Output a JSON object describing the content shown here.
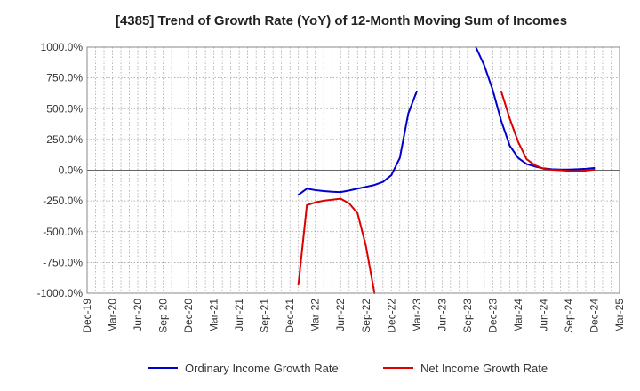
{
  "chart_data": {
    "type": "line",
    "title": "[4385]  Trend of Growth Rate (YoY) of 12-Month Moving Sum of Incomes",
    "xlabel": "",
    "ylabel": "",
    "ylim": [
      -1000,
      1000
    ],
    "y_ticks": [
      1000,
      750,
      500,
      250,
      0,
      -250,
      -500,
      -750,
      -1000
    ],
    "y_tick_labels": [
      "1000.0%",
      "750.0%",
      "500.0%",
      "250.0%",
      "0.0%",
      "-250.0%",
      "-500.0%",
      "-750.0%",
      "-1000.0%"
    ],
    "x_tick_labels": [
      "Dec-19",
      "Mar-20",
      "Jun-20",
      "Sep-20",
      "Dec-20",
      "Mar-21",
      "Jun-21",
      "Sep-21",
      "Dec-21",
      "Mar-22",
      "Jun-22",
      "Sep-22",
      "Dec-22",
      "Mar-23",
      "Jun-23",
      "Sep-23",
      "Dec-23",
      "Mar-24",
      "Jun-24",
      "Sep-24",
      "Dec-24",
      "Mar-25"
    ],
    "grid": true,
    "legend_position": "bottom",
    "series": [
      {
        "name": "Ordinary Income Growth Rate",
        "color": "#0000cc",
        "points": [
          [
            "Jan-22",
            -200
          ],
          [
            "Feb-22",
            -150
          ],
          [
            "Mar-22",
            -162
          ],
          [
            "Apr-22",
            -170
          ],
          [
            "May-22",
            -175
          ],
          [
            "Jun-22",
            -178
          ],
          [
            "Jul-22",
            -165
          ],
          [
            "Aug-22",
            -150
          ],
          [
            "Sep-22",
            -135
          ],
          [
            "Oct-22",
            -120
          ],
          [
            "Nov-22",
            -95
          ],
          [
            "Dec-22",
            -40
          ],
          [
            "Jan-23",
            100
          ],
          [
            "Feb-23",
            460
          ],
          [
            "Mar-23",
            640
          ],
          [
            "Oct-23",
            1000
          ],
          [
            "Nov-23",
            850
          ],
          [
            "Dec-23",
            650
          ],
          [
            "Jan-24",
            400
          ],
          [
            "Feb-24",
            200
          ],
          [
            "Mar-24",
            100
          ],
          [
            "Apr-24",
            50
          ],
          [
            "May-24",
            30
          ],
          [
            "Jun-24",
            15
          ],
          [
            "Jul-24",
            8
          ],
          [
            "Aug-24",
            5
          ],
          [
            "Sep-24",
            5
          ],
          [
            "Oct-24",
            8
          ],
          [
            "Nov-24",
            12
          ],
          [
            "Dec-24",
            18
          ]
        ]
      },
      {
        "name": "Net Income Growth Rate",
        "color": "#dd0000",
        "points": [
          [
            "Jan-22",
            -930
          ],
          [
            "Feb-22",
            -285
          ],
          [
            "Mar-22",
            -262
          ],
          [
            "Apr-22",
            -248
          ],
          [
            "May-22",
            -240
          ],
          [
            "Jun-22",
            -232
          ],
          [
            "Jul-22",
            -270
          ],
          [
            "Aug-22",
            -350
          ],
          [
            "Sep-22",
            -620
          ],
          [
            "Oct-22",
            -1000
          ],
          [
            "Jan-24",
            640
          ],
          [
            "Feb-24",
            420
          ],
          [
            "Mar-24",
            230
          ],
          [
            "Apr-24",
            90
          ],
          [
            "May-24",
            40
          ],
          [
            "Jun-24",
            12
          ],
          [
            "Jul-24",
            4
          ],
          [
            "Aug-24",
            0
          ],
          [
            "Sep-24",
            -5
          ],
          [
            "Oct-24",
            -8
          ],
          [
            "Nov-24",
            -3
          ],
          [
            "Dec-24",
            5
          ]
        ]
      }
    ]
  }
}
